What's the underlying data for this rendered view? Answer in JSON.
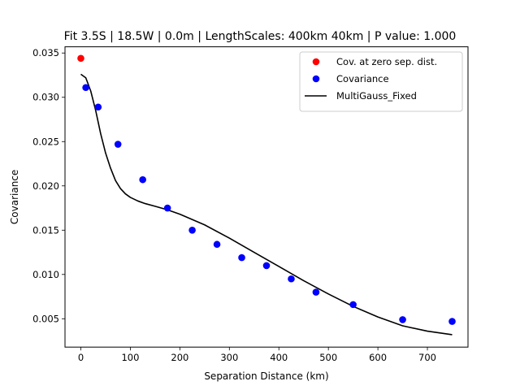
{
  "chart_data": {
    "type": "scatter",
    "title": "Fit 3.5S | 18.5W | 0.0m | LengthScales: 400km 40km | P value: 1.000",
    "xlabel": "Separation Distance (km)",
    "ylabel": "Covariance",
    "xlim": [
      -32,
      782
    ],
    "ylim": [
      0.0018,
      0.0357
    ],
    "xticks": [
      0,
      100,
      200,
      300,
      400,
      500,
      600,
      700
    ],
    "yticks": [
      0.005,
      0.01,
      0.015,
      0.02,
      0.025,
      0.03,
      0.035
    ],
    "xtick_labels": [
      "0",
      "100",
      "200",
      "300",
      "400",
      "500",
      "600",
      "700"
    ],
    "ytick_labels": [
      "0.005",
      "0.010",
      "0.015",
      "0.020",
      "0.025",
      "0.030",
      "0.035"
    ],
    "grid": false,
    "legend_position": "top-right",
    "series": [
      {
        "name": "Cov. at zero sep. dist.",
        "kind": "scatter",
        "color": "#ff0000",
        "x": [
          0
        ],
        "y": [
          0.0344
        ]
      },
      {
        "name": "Covariance",
        "kind": "scatter",
        "color": "#0000ff",
        "x": [
          10,
          35,
          75,
          125,
          175,
          225,
          275,
          325,
          375,
          425,
          475,
          550,
          650,
          750
        ],
        "y": [
          0.0311,
          0.0289,
          0.0247,
          0.0207,
          0.0175,
          0.015,
          0.0134,
          0.0119,
          0.011,
          0.0095,
          0.008,
          0.0066,
          0.0049,
          0.0047
        ]
      },
      {
        "name": "MultiGauss_Fixed",
        "kind": "line",
        "color": "#000000",
        "x": [
          0,
          10,
          20,
          30,
          40,
          50,
          60,
          70,
          80,
          90,
          100,
          115,
          130,
          150,
          175,
          200,
          250,
          300,
          350,
          400,
          450,
          500,
          550,
          600,
          650,
          700,
          750
        ],
        "y": [
          0.0326,
          0.0322,
          0.0307,
          0.0285,
          0.0259,
          0.0237,
          0.022,
          0.0206,
          0.0197,
          0.0191,
          0.0187,
          0.0183,
          0.018,
          0.0177,
          0.0173,
          0.0168,
          0.0156,
          0.0141,
          0.0125,
          0.0109,
          0.0093,
          0.0078,
          0.0064,
          0.0052,
          0.0042,
          0.0036,
          0.0032
        ]
      }
    ]
  }
}
